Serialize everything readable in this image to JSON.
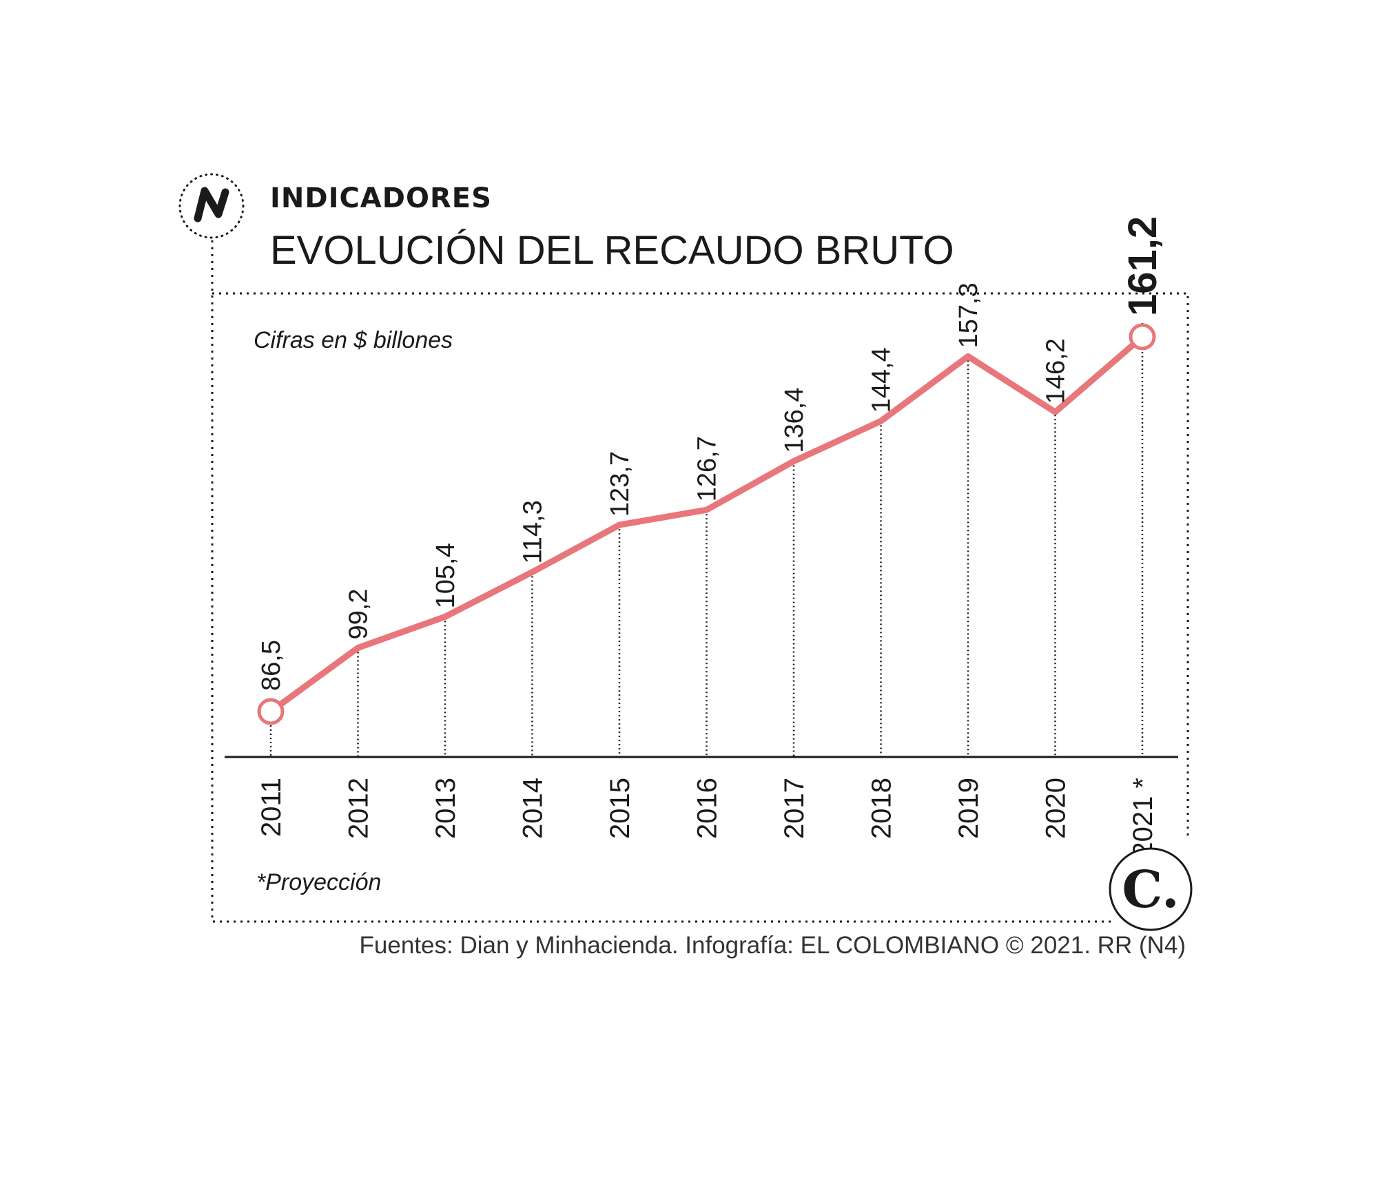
{
  "header": {
    "kicker": "INDICADORES",
    "title": "EVOLUCIÓN DEL RECAUDO BRUTO"
  },
  "icons": {
    "badge": "trend-line-icon",
    "logo": "el-colombiano-logo",
    "logo_letter": "C."
  },
  "colors": {
    "line": "#e8767a",
    "text": "#1a1a1a",
    "axis": "#1a1a1a",
    "marker_fill": "#ffffff"
  },
  "chart_data": {
    "type": "line",
    "title": "EVOLUCIÓN DEL RECAUDO BRUTO",
    "unit_note": "Cifras en $ billones",
    "categories": [
      "2011",
      "2012",
      "2013",
      "2014",
      "2015",
      "2016",
      "2017",
      "2018",
      "2019",
      "2020",
      "2021 *"
    ],
    "series": [
      {
        "name": "Recaudo bruto",
        "values": [
          86.5,
          99.2,
          105.4,
          114.3,
          123.7,
          126.7,
          136.4,
          144.4,
          157.3,
          146.2,
          161.2
        ]
      }
    ],
    "value_labels": [
      "86,5",
      "99,2",
      "105,4",
      "114,3",
      "123,7",
      "126,7",
      "136,4",
      "144,4",
      "157,3",
      "146,2",
      "161,2"
    ],
    "highlight_index": 10,
    "footnote": "*Proyección",
    "xlabel": "",
    "ylabel": "",
    "ylim": [
      77.4,
      161.2
    ]
  },
  "footer": {
    "source": "Fuentes: Dian y Minhacienda. Infografía: EL COLOMBIANO © 2021. RR (N4)"
  }
}
